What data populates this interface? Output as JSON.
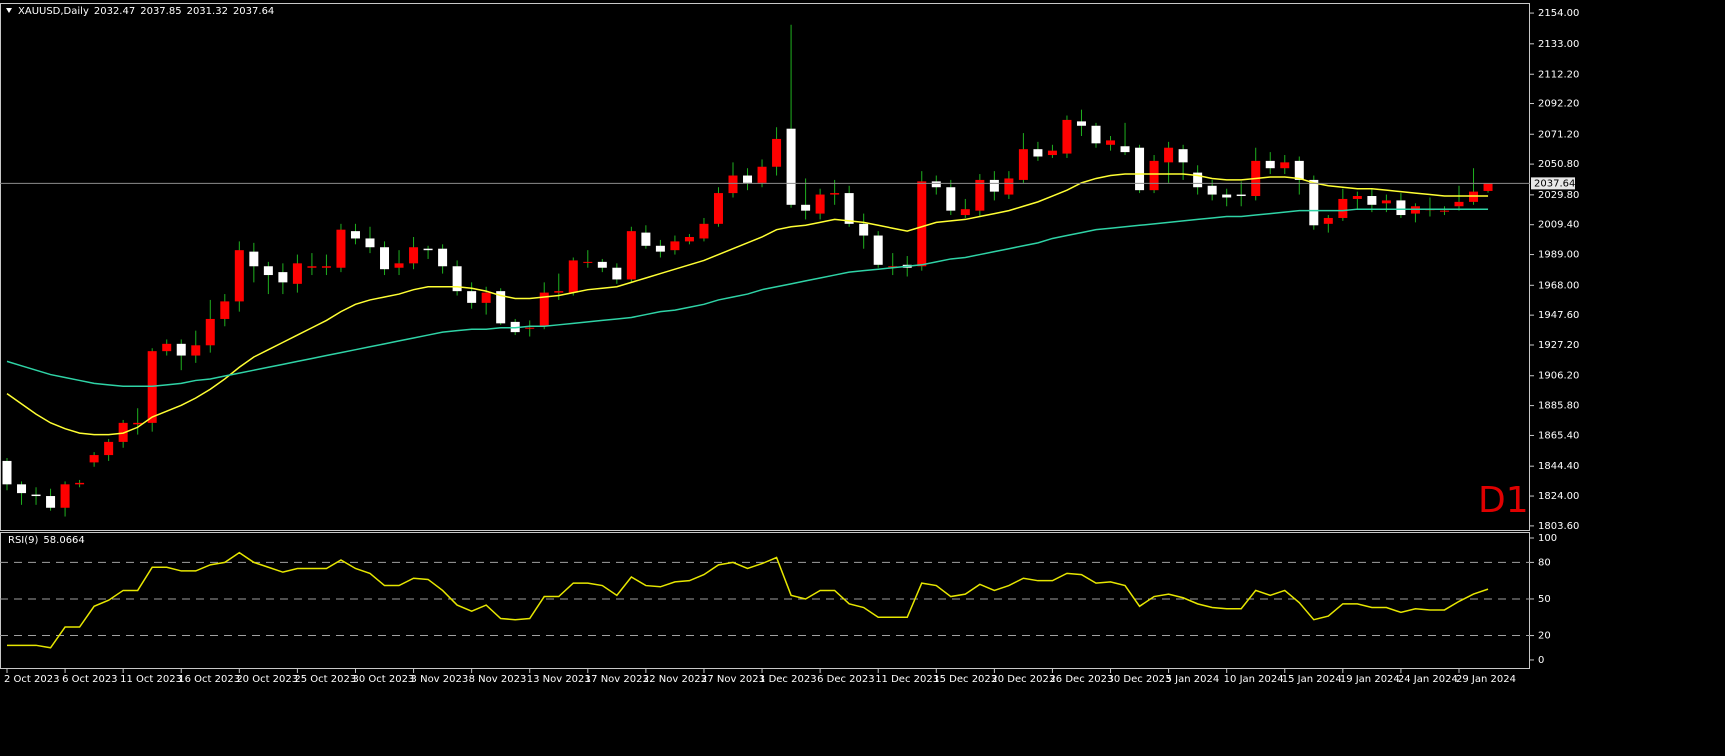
{
  "chart_data": [
    {
      "type": "candlestick",
      "title": "XAUUSD,Daily",
      "timeframe_label": "D1",
      "categories": [
        "2 Oct 2023",
        null,
        null,
        null,
        "6 Oct 2023",
        null,
        null,
        null,
        "11 Oct 2023",
        null,
        null,
        null,
        "16 Oct 2023",
        null,
        null,
        null,
        "20 Oct 2023",
        null,
        null,
        null,
        "25 Oct 2023",
        null,
        null,
        null,
        "30 Oct 2023",
        null,
        null,
        null,
        "3 Nov 2023",
        null,
        null,
        null,
        "8 Nov 2023",
        null,
        null,
        null,
        "13 Nov 2023",
        null,
        null,
        null,
        "17 Nov 2023",
        null,
        null,
        null,
        "22 Nov 2023",
        null,
        null,
        null,
        "27 Nov 2023",
        null,
        null,
        null,
        "1 Dec 2023",
        null,
        null,
        null,
        "6 Dec 2023",
        null,
        null,
        null,
        "11 Dec 2023",
        null,
        null,
        null,
        "15 Dec 2023",
        null,
        null,
        null,
        "20 Dec 2023",
        null,
        null,
        null,
        "26 Dec 2023",
        null,
        null,
        null,
        "30 Dec 2023",
        null,
        null,
        null,
        "5 Jan 2024",
        null,
        null,
        null,
        "10 Jan 2024",
        null,
        null,
        null,
        "15 Jan 2024",
        null,
        null,
        null,
        "19 Jan 2024",
        null,
        null,
        null,
        "24 Jan 2024",
        null,
        null,
        null,
        "29 Jan 2024",
        null,
        null
      ],
      "open": [
        1848,
        1832,
        1825,
        1824,
        1816,
        1832,
        1847,
        1852,
        1861,
        1873,
        1874,
        1923,
        1928,
        1920,
        1927,
        1945,
        1957,
        1991,
        1981,
        1977,
        1969,
        1980,
        1980,
        1980,
        2005,
        2000,
        1994,
        1980,
        1983,
        1993,
        1993,
        1981,
        1964,
        1956,
        1964,
        1943,
        1939,
        1940,
        1963,
        1963,
        1984,
        1984,
        1980,
        1972,
        2004,
        1995,
        1992,
        1998,
        2000,
        2010,
        2031,
        2043,
        2038,
        2049,
        2075,
        2023,
        2017,
        2030,
        2031,
        2010,
        2002,
        1981,
        1982,
        1981,
        2039,
        2035,
        2016,
        2019,
        2040,
        2030,
        2040,
        2061,
        2057,
        2058,
        2080,
        2077,
        2064,
        2063,
        2062,
        2033,
        2052,
        2061,
        2045,
        2036,
        2030,
        2030,
        2029,
        2053,
        2048,
        2053,
        2040,
        2010,
        2014,
        2027,
        2029,
        2024,
        2026,
        2017,
        2020,
        2019,
        2022,
        2025,
        2032.47
      ],
      "high": [
        1850,
        1834,
        1830,
        1829,
        1834,
        1835,
        1854,
        1863,
        1876,
        1884,
        1925,
        1931,
        1931,
        1937,
        1958,
        1962,
        1998,
        1997,
        1984,
        1983,
        1989,
        1990,
        1989,
        2010,
        2010,
        2008,
        1998,
        1992,
        2001,
        1995,
        1996,
        1985,
        1970,
        1967,
        1966,
        1945,
        1944,
        1970,
        1976,
        1987,
        1992,
        1986,
        1983,
        2008,
        2009,
        1999,
        2002,
        2003,
        2014,
        2035,
        2052,
        2048,
        2054,
        2076,
        2146,
        2041,
        2034,
        2040,
        2036,
        2017,
        2005,
        1990,
        1988,
        2046,
        2043,
        2040,
        2027,
        2044,
        2046,
        2046,
        2072,
        2066,
        2064,
        2084,
        2088,
        2079,
        2070,
        2079,
        2064,
        2057,
        2066,
        2064,
        2050,
        2040,
        2034,
        2039,
        2062,
        2059,
        2057,
        2056,
        2043,
        2016,
        2034,
        2032,
        2034,
        2030,
        2031,
        2024,
        2028,
        2022,
        2036,
        2048,
        2037.85
      ],
      "low": [
        1828,
        1818,
        1818,
        1814,
        1810,
        1830,
        1844,
        1848,
        1857,
        1866,
        1868,
        1920,
        1910,
        1915,
        1922,
        1940,
        1950,
        1970,
        1962,
        1962,
        1963,
        1975,
        1975,
        1977,
        1996,
        1990,
        1975,
        1975,
        1979,
        1986,
        1976,
        1961,
        1952,
        1948,
        1941,
        1934,
        1933,
        1938,
        1958,
        1961,
        1980,
        1977,
        1969,
        1970,
        1993,
        1987,
        1989,
        1996,
        1998,
        2008,
        2028,
        2033,
        2035,
        2043,
        2021,
        2013,
        2013,
        2023,
        2008,
        1993,
        1980,
        1975,
        1974,
        1978,
        2030,
        2016,
        2014,
        2015,
        2026,
        2027,
        2038,
        2053,
        2055,
        2055,
        2070,
        2062,
        2060,
        2057,
        2031,
        2031,
        2038,
        2040,
        2030,
        2026,
        2022,
        2022,
        2026,
        2044,
        2044,
        2030,
        2006,
        2004,
        2012,
        2020,
        2018,
        2018,
        2014,
        2011,
        2015,
        2016,
        2019,
        2023,
        2031.32
      ],
      "close": [
        1832,
        1826,
        1824,
        1816,
        1832,
        1833,
        1852,
        1861,
        1874,
        1874,
        1923,
        1928,
        1920,
        1927,
        1945,
        1957,
        1992,
        1981,
        1975,
        1970,
        1983,
        1981,
        1981,
        2006,
        2000,
        1994,
        1979,
        1983,
        1994,
        1992,
        1981,
        1964,
        1956,
        1963,
        1942,
        1936,
        1939,
        1963,
        1964,
        1985,
        1984,
        1980,
        1972,
        2005,
        1995,
        1991,
        1998,
        2001,
        2010,
        2031,
        2043,
        2038,
        2049,
        2068,
        2023,
        2019,
        2030,
        2031,
        2010,
        2002,
        1982,
        1981,
        1980,
        2039,
        2035,
        2019,
        2020,
        2040,
        2032,
        2041,
        2061,
        2056,
        2060,
        2081,
        2077,
        2065,
        2067,
        2059,
        2033,
        2053,
        2062,
        2052,
        2035,
        2030,
        2028,
        2029,
        2053,
        2048,
        2052,
        2040,
        2009,
        2014,
        2027,
        2029,
        2023,
        2026,
        2016,
        2022,
        2020,
        2019,
        2025,
        2032,
        2037.64
      ],
      "up_color": "#ff0000",
      "down_color": "#ffffff",
      "wick_color": "#1fb01f",
      "price_line_color": "#8c8c8c",
      "series": [
        {
          "color": "#ffff33",
          "values": [
            1894,
            1887,
            1880,
            1874,
            1870,
            1867,
            1866,
            1866,
            1867,
            1871,
            1878,
            1882,
            1886,
            1891,
            1897,
            1904,
            1912,
            1919,
            1924,
            1929,
            1934,
            1939,
            1944,
            1950,
            1955,
            1958,
            1960,
            1962,
            1965,
            1967,
            1967,
            1967,
            1966,
            1964,
            1961,
            1959,
            1959,
            1960,
            1961,
            1963,
            1965,
            1966,
            1967,
            1970,
            1973,
            1976,
            1979,
            1982,
            1985,
            1989,
            1993,
            1997,
            2001,
            2006,
            2008,
            2009,
            2011,
            2013,
            2012,
            2011,
            2009,
            2007,
            2005,
            2008,
            2011,
            2012,
            2013,
            2015,
            2017,
            2019,
            2022,
            2025,
            2029,
            2033,
            2038,
            2041,
            2043,
            2044,
            2044,
            2044,
            2044,
            2044,
            2043,
            2041,
            2040,
            2040,
            2041,
            2042,
            2042,
            2041,
            2038,
            2036,
            2035,
            2034,
            2034,
            2033,
            2032,
            2031,
            2030,
            2029,
            2029,
            2029,
            2029
          ]
        },
        {
          "color": "#2fd3a6",
          "values": [
            1916,
            1913,
            1910,
            1907,
            1905,
            1903,
            1901,
            1900,
            1899,
            1899,
            1899,
            1900,
            1901,
            1903,
            1904,
            1906,
            1908,
            1910,
            1912,
            1914,
            1916,
            1918,
            1920,
            1922,
            1924,
            1926,
            1928,
            1930,
            1932,
            1934,
            1936,
            1937,
            1938,
            1938,
            1939,
            1939,
            1940,
            1940,
            1941,
            1942,
            1943,
            1944,
            1945,
            1946,
            1948,
            1950,
            1951,
            1953,
            1955,
            1958,
            1960,
            1962,
            1965,
            1967,
            1969,
            1971,
            1973,
            1975,
            1977,
            1978,
            1979,
            1980,
            1981,
            1982,
            1984,
            1986,
            1987,
            1989,
            1991,
            1993,
            1995,
            1997,
            2000,
            2002,
            2004,
            2006,
            2007,
            2008,
            2009,
            2010,
            2011,
            2012,
            2013,
            2014,
            2015,
            2015,
            2016,
            2017,
            2018,
            2019,
            2019,
            2019,
            2019,
            2020,
            2020,
            2020,
            2020,
            2020,
            2020,
            2020,
            2020,
            2020,
            2020
          ]
        }
      ],
      "ylim": [
        1800.8,
        2160.2
      ],
      "yticks": [
        {
          "value": 2154,
          "label": "2154.00"
        },
        {
          "value": 2133,
          "label": "2133.00"
        },
        {
          "value": 2112.2,
          "label": "2112.20"
        },
        {
          "value": 2092.2,
          "label": "2092.20"
        },
        {
          "value": 2071.2,
          "label": "2071.20"
        },
        {
          "value": 2050.8,
          "label": "2050.80"
        },
        {
          "value": 2029.8,
          "label": "2029.80"
        },
        {
          "value": 2009.4,
          "label": "2009.40"
        },
        {
          "value": 1989,
          "label": "1989.00"
        },
        {
          "value": 1968,
          "label": "1968.00"
        },
        {
          "value": 1947.6,
          "label": "1947.60"
        },
        {
          "value": 1927.2,
          "label": "1927.20"
        },
        {
          "value": 1906.2,
          "label": "1906.20"
        },
        {
          "value": 1885.8,
          "label": "1885.80"
        },
        {
          "value": 1865.4,
          "label": "1865.40"
        },
        {
          "value": 1844.4,
          "label": "1844.40"
        },
        {
          "value": 1824,
          "label": "1824.00"
        },
        {
          "value": 1803.6,
          "label": "1803.60"
        }
      ]
    },
    {
      "type": "line",
      "title": "RSI(9)",
      "series": [
        {
          "color": "#e6e600",
          "values": [
            12,
            12,
            12,
            10,
            27,
            27,
            44,
            49,
            57,
            57,
            76,
            76,
            73,
            73,
            78,
            80,
            88,
            80,
            76,
            72,
            75,
            75,
            75,
            82,
            75,
            71,
            61,
            61,
            67,
            66,
            57,
            45,
            40,
            45,
            34,
            33,
            34,
            52,
            52,
            63,
            63,
            61,
            53,
            68,
            61,
            60,
            64,
            65,
            70,
            78,
            80,
            75,
            79,
            84,
            53,
            50,
            57,
            57,
            46,
            43,
            35,
            35,
            35,
            63,
            61,
            52,
            54,
            62,
            57,
            61,
            67,
            65,
            65,
            71,
            70,
            63,
            64,
            61,
            44,
            52,
            54,
            51,
            46,
            43,
            42,
            42,
            57,
            53,
            57,
            47,
            33,
            36,
            46,
            46,
            43,
            43,
            39,
            42,
            41,
            41,
            48,
            54,
            58.0664
          ]
        }
      ],
      "ylim": [
        -6.6,
        104.1
      ],
      "yticks": [
        0,
        20,
        50,
        80,
        100
      ],
      "levels": [
        20,
        50,
        80
      ],
      "level_color": "#a0a0a0"
    }
  ]
}
